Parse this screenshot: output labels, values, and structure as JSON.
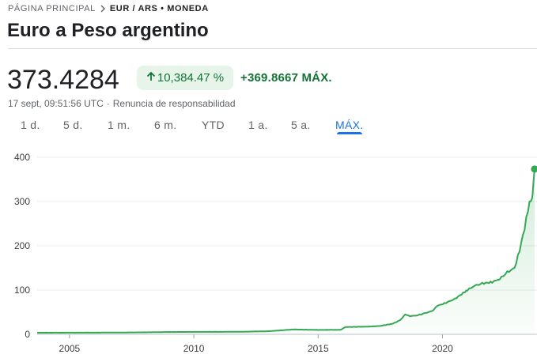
{
  "breadcrumb": {
    "home": "PÁGINA PRINCIPAL",
    "current": "EUR / ARS • MONEDA"
  },
  "title": "Euro a Peso argentino",
  "quote": {
    "price": "373.4284",
    "change_pct": "10,384.47 %",
    "change_abs": "+369.8667 MÁX.",
    "timestamp": "17 sept, 09:51:56 UTC",
    "separator": "·",
    "disclaimer": "Renuncia de responsabilidad"
  },
  "ranges": [
    {
      "label": "1 d.",
      "active": false
    },
    {
      "label": "5 d.",
      "active": false
    },
    {
      "label": "1 m.",
      "active": false
    },
    {
      "label": "6 m.",
      "active": false
    },
    {
      "label": "YTD",
      "active": false
    },
    {
      "label": "1 a.",
      "active": false
    },
    {
      "label": "5 a.",
      "active": false
    },
    {
      "label": "MÁX.",
      "active": true
    }
  ],
  "colors": {
    "up": "#137333",
    "up_bg": "#e6f4ea",
    "line": "#34a853",
    "accent": "#1a73e8",
    "grid": "#e8eaed"
  },
  "chart_data": {
    "type": "area",
    "title": "Euro a Peso argentino",
    "xlabel": "",
    "ylabel": "",
    "xlim": [
      2003.7,
      2023.8
    ],
    "ylim": [
      0,
      400
    ],
    "x_ticks": [
      2005,
      2010,
      2015,
      2020
    ],
    "y_ticks": [
      0,
      100,
      200,
      300,
      400
    ],
    "grid": true,
    "series": [
      {
        "name": "EUR/ARS",
        "x": [
          2003.7,
          2005,
          2006,
          2007,
          2008,
          2009,
          2010,
          2011,
          2012,
          2013,
          2014,
          2015,
          2015.9,
          2016.1,
          2017,
          2017.5,
          2018,
          2018.3,
          2018.5,
          2018.7,
          2019,
          2019.3,
          2019.6,
          2019.8,
          2020,
          2020.5,
          2020.9,
          2021,
          2021.3,
          2021.6,
          2022,
          2022.3,
          2022.6,
          2022.9,
          2023.1,
          2023.3,
          2023.5,
          2023.6,
          2023.65,
          2023.7
        ],
        "values": [
          3.6,
          3.7,
          3.8,
          4.0,
          4.5,
          5.2,
          5.5,
          5.6,
          5.9,
          7.0,
          11.0,
          10.0,
          10.2,
          16.5,
          17.5,
          19.0,
          24.0,
          32.0,
          45.0,
          41.0,
          43.0,
          48.0,
          53.0,
          65.0,
          68.0,
          80.0,
          96.0,
          100.0,
          110.0,
          115.0,
          118.0,
          125.0,
          140.0,
          150.0,
          190.0,
          240.0,
          300.0,
          303.0,
          340.0,
          373.43
        ]
      }
    ],
    "last_point": {
      "x": 2023.7,
      "y": 373.43
    }
  }
}
